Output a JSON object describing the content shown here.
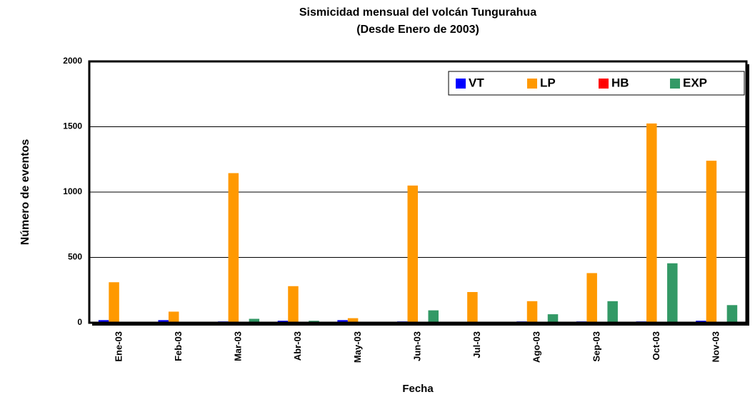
{
  "chart_data": {
    "type": "bar",
    "title": "Sismicidad mensual del volcán Tungurahua",
    "subtitle": "(Desde Enero de 2003)",
    "x_label": "Fecha",
    "y_label": "Número de eventos",
    "categories": [
      "Ene-03",
      "Feb-03",
      "Mar-03",
      "Abr-03",
      "May-03",
      "Jun-03",
      "Jul-03",
      "Ago-03",
      "Sep-03",
      "Oct-03",
      "Nov-03"
    ],
    "series": [
      {
        "name": "VT",
        "color": "#0000ff",
        "values": [
          20,
          20,
          10,
          15,
          20,
          10,
          5,
          10,
          10,
          10,
          15
        ]
      },
      {
        "name": "LP",
        "color": "#ff9900",
        "values": [
          310,
          85,
          1145,
          280,
          35,
          1050,
          235,
          165,
          380,
          1525,
          1240
        ]
      },
      {
        "name": "HB",
        "color": "#ff0000",
        "values": [
          0,
          0,
          0,
          0,
          0,
          0,
          0,
          0,
          0,
          0,
          0
        ]
      },
      {
        "name": "EXP",
        "color": "#339966",
        "values": [
          5,
          5,
          30,
          15,
          5,
          95,
          5,
          65,
          165,
          455,
          135
        ]
      }
    ],
    "ylim": [
      0,
      2000
    ],
    "yticks": [
      0,
      500,
      1000,
      1500,
      2000
    ],
    "grid": true,
    "legend": "top-right"
  }
}
